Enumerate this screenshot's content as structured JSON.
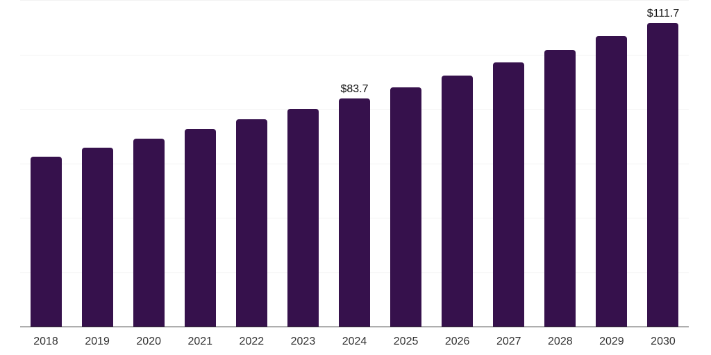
{
  "chart_data": {
    "type": "bar",
    "title": "",
    "xlabel": "",
    "ylabel": "",
    "categories": [
      "2018",
      "2019",
      "2020",
      "2021",
      "2022",
      "2023",
      "2024",
      "2025",
      "2026",
      "2027",
      "2028",
      "2029",
      "2030"
    ],
    "values": [
      62.4,
      65.7,
      69.0,
      72.6,
      76.1,
      79.9,
      83.7,
      87.9,
      92.3,
      97.0,
      101.7,
      106.8,
      111.7
    ],
    "value_labels": [
      "",
      "",
      "",
      "",
      "",
      "",
      "$83.7",
      "",
      "",
      "",
      "",
      "",
      "$111.7"
    ],
    "ylim": [
      0,
      120
    ],
    "gridline_values": [
      20,
      40,
      60,
      80,
      100,
      120
    ],
    "grid": "horizontal-only",
    "legend": "none",
    "y_axis_tick_labels_visible": false,
    "colors": {
      "bar": "#36114c",
      "gridline": "#f2f2f2",
      "axis_line": "#333333",
      "tick_label": "#333333",
      "value_label": "#111111",
      "background": "#ffffff"
    }
  }
}
